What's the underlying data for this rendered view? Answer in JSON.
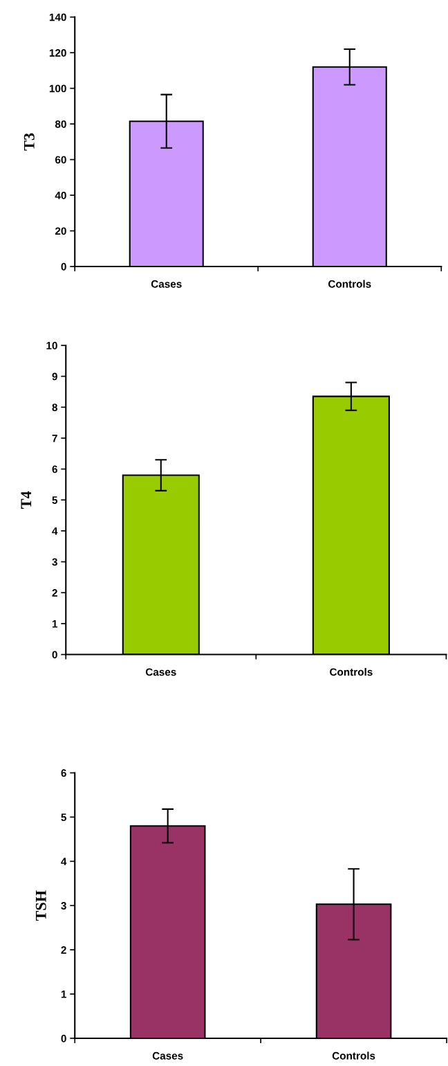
{
  "chart_data": [
    {
      "type": "bar",
      "ylabel": "T3",
      "categories": [
        "Cases",
        "Controls"
      ],
      "values": [
        81.5,
        112
      ],
      "errors": [
        15,
        10
      ],
      "color": "#cc99ff",
      "ylim": [
        0,
        140
      ],
      "yticks": [
        0,
        20,
        40,
        60,
        80,
        100,
        120,
        140
      ],
      "grid": false
    },
    {
      "type": "bar",
      "ylabel": "T4",
      "categories": [
        "Cases",
        "Controls"
      ],
      "values": [
        5.8,
        8.35
      ],
      "errors": [
        0.5,
        0.45
      ],
      "color": "#99cc00",
      "ylim": [
        0,
        10
      ],
      "yticks": [
        0,
        1,
        2,
        3,
        4,
        5,
        6,
        7,
        8,
        9,
        10
      ],
      "grid": false
    },
    {
      "type": "bar",
      "ylabel": "TSH",
      "categories": [
        "Cases",
        "Controls"
      ],
      "values": [
        4.8,
        3.03
      ],
      "errors": [
        0.38,
        0.8
      ],
      "color": "#993366",
      "ylim": [
        0,
        6
      ],
      "yticks": [
        0,
        1,
        2,
        3,
        4,
        5,
        6
      ],
      "grid": false
    }
  ]
}
